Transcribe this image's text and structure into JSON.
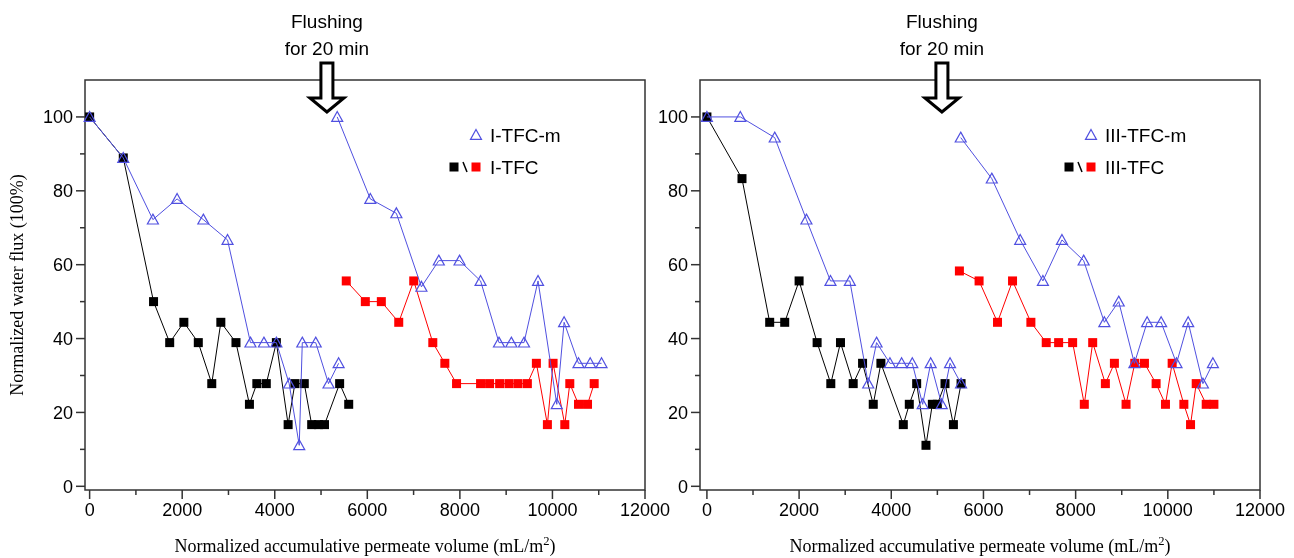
{
  "chart_data": [
    {
      "type": "line",
      "xlabel": "Normalized accumulative permeate volume (mL/m$^{2}$)",
      "ylabel": "Normalized water flux (100%)",
      "xlim": [
        -100,
        12000
      ],
      "ylim": [
        -1,
        110
      ],
      "xticks": [
        0,
        {
          "value": 1000,
          "label": null
        },
        2000,
        {
          "value": 3000,
          "label": null
        },
        4000,
        {
          "value": 5000,
          "label": null
        },
        6000,
        {
          "value": 7000,
          "label": null
        },
        8000,
        {
          "value": 9000,
          "label": null
        },
        10000,
        {
          "value": 11000,
          "label": null
        },
        12000
      ],
      "yticks": [
        0,
        {
          "value": 10,
          "label": null
        },
        20,
        {
          "value": 30,
          "label": null
        },
        40,
        {
          "value": 50,
          "label": null
        },
        60,
        {
          "value": 70,
          "label": null
        },
        80,
        {
          "value": 90,
          "label": null
        },
        100
      ],
      "legend": "top right",
      "annotations": [
        "Flushing\nfor 20 min"
      ],
      "series": [
        {
          "name": "I-TFC-m",
          "color": "#5050e0",
          "marker": "triangle",
          "x": [
            0,
            727,
            1367,
            1890,
            2457,
            2980,
            3475,
            3766,
            4035,
            4311,
            4529,
            4595,
            4885,
            5162,
            5380
          ],
          "values": [
            100,
            88.9,
            72.2,
            77.8,
            72.2,
            66.7,
            38.9,
            38.9,
            38.9,
            27.8,
            11.1,
            38.9,
            38.9,
            27.8,
            33.3
          ]
        },
        {
          "color": "#5050e0",
          "marker": "triangle",
          "x": [
            5350,
            6065,
            6628,
            7169,
            7545,
            7993,
            8447,
            8845,
            9112,
            9386,
            9689,
            10094,
            10252,
            10563,
            10816,
            11061
          ],
          "values": [
            100,
            77.8,
            73.9,
            54,
            61.1,
            61.1,
            55.6,
            38.9,
            38.9,
            38.9,
            55.6,
            22.2,
            44.4,
            33.3,
            33.3,
            33.3
          ]
        },
        {
          "color": "#000000",
          "marker": "square",
          "x": [
            0,
            727,
            1381,
            1730,
            2036,
            2348,
            2639,
            2835,
            3162,
            3453,
            3613,
            3817,
            4035,
            4289,
            4435,
            4638,
            4798,
            4944,
            5075,
            5402,
            5598
          ],
          "values": [
            100,
            88.9,
            50,
            38.9,
            44.4,
            38.9,
            27.8,
            44.4,
            38.9,
            22.2,
            27.8,
            27.8,
            38.9,
            16.7,
            27.8,
            27.8,
            16.7,
            16.7,
            16.7,
            27.8,
            22.2
          ]
        },
        {
          "name": "I-TFC",
          "color": "#ff0000",
          "marker": "square",
          "x": [
            5545,
            5957,
            6303,
            6679,
            7003,
            7415,
            7675,
            7928,
            8447,
            8642,
            8859,
            9061,
            9256,
            9458,
            9653,
            9891,
            10014,
            10267,
            10375,
            10563,
            10758,
            10902
          ],
          "values": [
            55.6,
            50,
            50,
            44.4,
            55.6,
            38.9,
            33.3,
            27.8,
            27.8,
            27.8,
            27.8,
            27.8,
            27.8,
            27.8,
            33.3,
            16.7,
            33.3,
            16.7,
            27.8,
            22.2,
            22.2,
            27.8
          ]
        }
      ]
    },
    {
      "type": "line",
      "xlabel": "Normalized accumulative permeate volume (mL/m$^{2}$)",
      "xlim": [
        -150,
        12000
      ],
      "ylim": [
        -1,
        110
      ],
      "xticks": [
        0,
        {
          "value": 1000,
          "label": null
        },
        2000,
        {
          "value": 3000,
          "label": null
        },
        4000,
        {
          "value": 5000,
          "label": null
        },
        6000,
        {
          "value": 7000,
          "label": null
        },
        8000,
        {
          "value": 9000,
          "label": null
        },
        10000,
        {
          "value": 11000,
          "label": null
        },
        12000
      ],
      "yticks": [
        0,
        {
          "value": 10,
          "label": null
        },
        20,
        {
          "value": 30,
          "label": null
        },
        40,
        {
          "value": 50,
          "label": null
        },
        60,
        {
          "value": 70,
          "label": null
        },
        80,
        {
          "value": 90,
          "label": null
        },
        100
      ],
      "legend": "top right",
      "annotations": [
        "Flushing\nfor 20 min"
      ],
      "series": [
        {
          "name": "III-TFC-m",
          "color": "#5050e0",
          "marker": "triangle",
          "x": [
            0,
            725,
            1471,
            2159,
            2681,
            3101,
            3500,
            3681,
            3971,
            4224,
            4456,
            4681,
            4855,
            5094,
            5275,
            5514
          ],
          "values": [
            100,
            100,
            94.4,
            72.2,
            55.6,
            55.6,
            27.8,
            38.9,
            33.3,
            33.3,
            33.3,
            22.2,
            33.3,
            22.2,
            33.3,
            27.8
          ]
        },
        {
          "color": "#5050e0",
          "marker": "triangle",
          "x": [
            5507,
            6181,
            6797,
            7290,
            7703,
            8174,
            8623,
            8935,
            9275,
            9551,
            9855,
            10189,
            10442,
            10761,
            10978
          ],
          "values": [
            94.4,
            83.3,
            66.7,
            55.6,
            66.7,
            61.1,
            44.4,
            50,
            33.3,
            44.4,
            44.4,
            33.3,
            44.4,
            27.8,
            33.3
          ]
        },
        {
          "color": "#000000",
          "marker": "square",
          "x": [
            0,
            761,
            1362,
            1688,
            2000,
            2391,
            2688,
            2898,
            3174,
            3377,
            3609,
            3775,
            4261,
            4391,
            4551,
            4753,
            4891,
            5000,
            5166,
            5348,
            5514
          ],
          "values": [
            100,
            83.3,
            44.4,
            44.4,
            55.6,
            38.9,
            27.8,
            38.9,
            27.8,
            33.3,
            22.2,
            33.3,
            16.7,
            22.2,
            27.8,
            11.1,
            22.2,
            22.2,
            27.8,
            16.7,
            27.8
          ]
        },
        {
          "name": "III-TFC",
          "color": "#ff0000",
          "marker": "square",
          "x": [
            5478,
            5905,
            6305,
            6631,
            7029,
            7362,
            7631,
            7935,
            8188,
            8370,
            8645,
            8841,
            9094,
            9283,
            9493,
            9746,
            9949,
            10094,
            10348,
            10493,
            10616,
            10833,
            11000
          ],
          "values": [
            58.3,
            55.6,
            44.4,
            55.6,
            44.4,
            38.9,
            38.9,
            38.9,
            22.2,
            38.9,
            27.8,
            33.3,
            22.2,
            33.3,
            33.3,
            27.8,
            22.2,
            33.3,
            22.2,
            16.7,
            27.8,
            22.2,
            22.2
          ]
        }
      ]
    }
  ]
}
